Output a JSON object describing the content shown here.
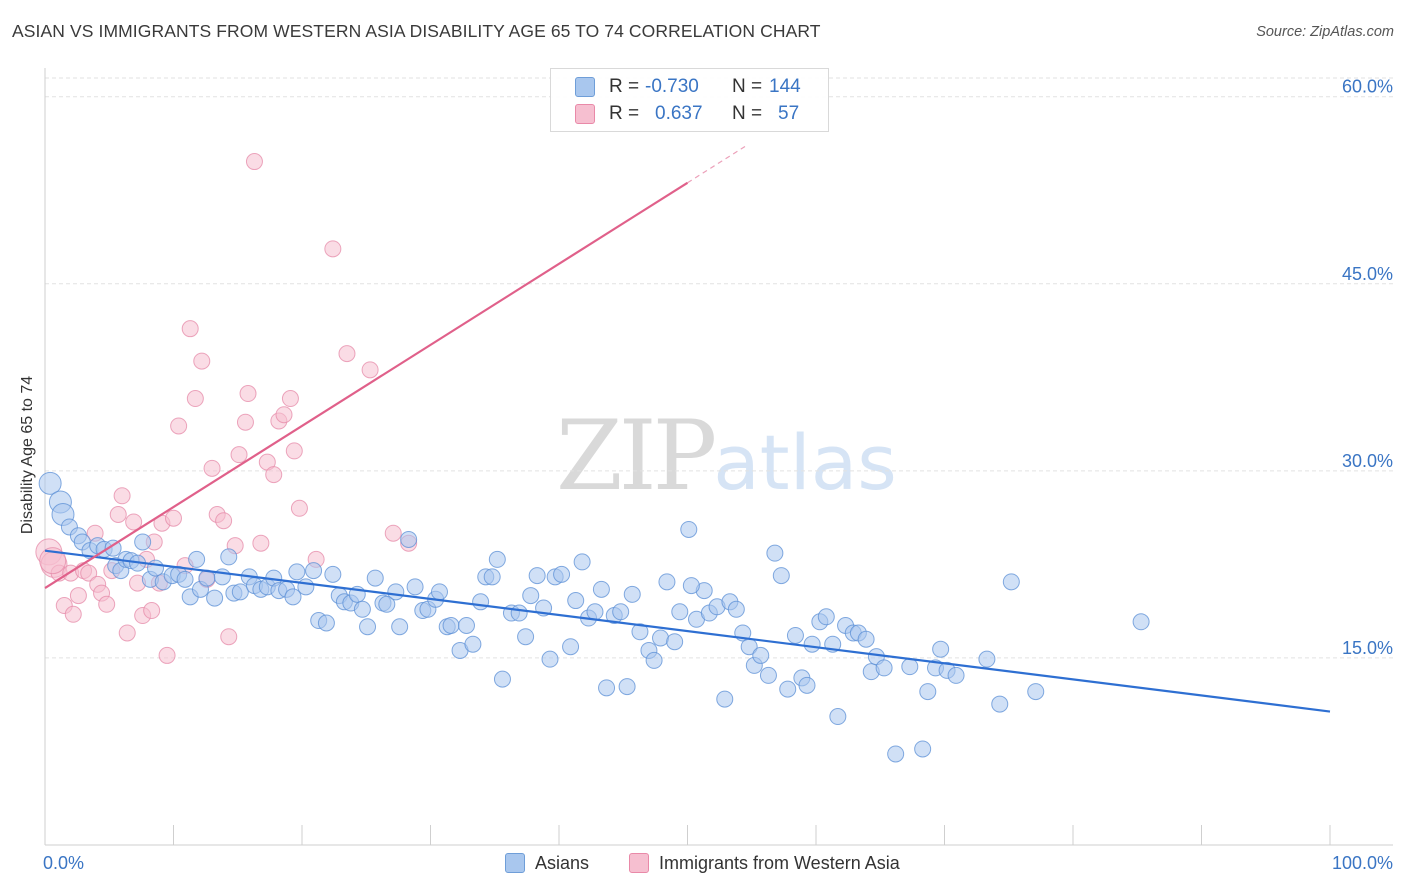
{
  "title": "ASIAN VS IMMIGRANTS FROM WESTERN ASIA DISABILITY AGE 65 TO 74 CORRELATION CHART",
  "source": "Source: ZipAtlas.com",
  "watermark": {
    "zip": "ZIP",
    "atlas": "atlas"
  },
  "legend": {
    "rows": [
      {
        "r_label": "R =",
        "r_value": "-0.730",
        "n_label": "N =",
        "n_value": "144",
        "color": "#a9c7ee",
        "border": "#6f9ed8"
      },
      {
        "r_label": "R =",
        "r_value": "0.637",
        "n_label": "N =",
        "n_value": "57",
        "color": "#f6bfd0",
        "border": "#e989a8"
      }
    ]
  },
  "bottom_legend": [
    {
      "label": "Asians",
      "color": "#a9c7ee",
      "border": "#6f9ed8"
    },
    {
      "label": "Immigrants from Western Asia",
      "color": "#f6bfd0",
      "border": "#e989a8"
    }
  ],
  "colors": {
    "asian_fill": "#a9c7ee",
    "asian_stroke": "#5b8fd6",
    "asian_line": "#2e6fd2",
    "wa_fill": "#f6bfd0",
    "wa_stroke": "#e58aa8",
    "wa_line": "#e0608a",
    "tick_text": "#3a75c4",
    "grid": "#e2e2e2"
  },
  "chart_data": {
    "type": "scatter",
    "title": "ASIAN VS IMMIGRANTS FROM WESTERN ASIA DISABILITY AGE 65 TO 74 CORRELATION CHART",
    "xlabel": "",
    "ylabel": "Disability Age 65 to 74",
    "xlim": [
      0,
      100
    ],
    "ylim": [
      0,
      61.5
    ],
    "x_tick_labels": [
      "0.0%",
      "100.0%"
    ],
    "y_ticks": [
      15,
      30,
      45,
      60
    ],
    "y_tick_labels": [
      "15.0%",
      "30.0%",
      "45.0%",
      "60.0%"
    ],
    "grid": true,
    "legend_position": "top-center",
    "series": [
      {
        "name": "Asians",
        "trend": {
          "x": [
            0,
            100
          ],
          "y": [
            23.6,
            10.7
          ]
        },
        "points": [
          [
            0.4,
            29
          ],
          [
            1.2,
            27.5
          ],
          [
            1.4,
            26.5
          ],
          [
            1.9,
            25.5
          ],
          [
            2.6,
            24.8
          ],
          [
            2.9,
            24.3
          ],
          [
            3.5,
            23.6
          ],
          [
            4.1,
            24
          ],
          [
            4.6,
            23.7
          ],
          [
            5.3,
            23.8
          ],
          [
            5.5,
            22.4
          ],
          [
            5.9,
            22
          ],
          [
            6.3,
            22.9
          ],
          [
            6.7,
            22.8
          ],
          [
            7.2,
            22.6
          ],
          [
            7.6,
            24.3
          ],
          [
            8.2,
            21.3
          ],
          [
            8.6,
            22.2
          ],
          [
            9.2,
            21.1
          ],
          [
            9.9,
            21.6
          ],
          [
            10.4,
            21.7
          ],
          [
            10.9,
            21.3
          ],
          [
            11.3,
            19.9
          ],
          [
            11.8,
            22.9
          ],
          [
            12.1,
            20.5
          ],
          [
            12.6,
            21.4
          ],
          [
            13.2,
            19.8
          ],
          [
            13.8,
            21.5
          ],
          [
            14.3,
            23.1
          ],
          [
            14.7,
            20.2
          ],
          [
            15.2,
            20.3
          ],
          [
            15.9,
            21.5
          ],
          [
            16.3,
            20.8
          ],
          [
            16.8,
            20.5
          ],
          [
            17.3,
            20.7
          ],
          [
            17.8,
            21.4
          ],
          [
            18.2,
            20.4
          ],
          [
            18.8,
            20.5
          ],
          [
            19.3,
            19.9
          ],
          [
            19.6,
            21.9
          ],
          [
            20.3,
            20.7
          ],
          [
            20.9,
            22
          ],
          [
            21.3,
            18
          ],
          [
            21.9,
            17.8
          ],
          [
            22.4,
            21.7
          ],
          [
            22.9,
            20
          ],
          [
            23.3,
            19.5
          ],
          [
            23.8,
            19.4
          ],
          [
            24.3,
            20.1
          ],
          [
            24.7,
            18.9
          ],
          [
            25.1,
            17.5
          ],
          [
            25.7,
            21.4
          ],
          [
            26.3,
            19.4
          ],
          [
            26.6,
            19.3
          ],
          [
            27.3,
            20.3
          ],
          [
            27.6,
            17.5
          ],
          [
            28.3,
            24.5
          ],
          [
            28.8,
            20.7
          ],
          [
            29.4,
            18.8
          ],
          [
            29.8,
            18.9
          ],
          [
            30.4,
            19.7
          ],
          [
            30.7,
            20.3
          ],
          [
            31.3,
            17.5
          ],
          [
            31.6,
            17.6
          ],
          [
            32.3,
            15.6
          ],
          [
            32.8,
            17.6
          ],
          [
            33.3,
            16.1
          ],
          [
            33.9,
            19.5
          ],
          [
            34.3,
            21.5
          ],
          [
            34.8,
            21.5
          ],
          [
            35.2,
            22.9
          ],
          [
            35.6,
            13.3
          ],
          [
            36.3,
            18.6
          ],
          [
            36.9,
            18.6
          ],
          [
            37.4,
            16.7
          ],
          [
            37.8,
            20
          ],
          [
            38.3,
            21.6
          ],
          [
            38.8,
            19
          ],
          [
            39.3,
            14.9
          ],
          [
            39.7,
            21.5
          ],
          [
            40.2,
            21.7
          ],
          [
            40.9,
            15.9
          ],
          [
            41.3,
            19.6
          ],
          [
            41.8,
            22.7
          ],
          [
            42.3,
            18.2
          ],
          [
            42.8,
            18.7
          ],
          [
            43.3,
            20.5
          ],
          [
            43.7,
            12.6
          ],
          [
            44.3,
            18.4
          ],
          [
            44.8,
            18.7
          ],
          [
            45.3,
            12.7
          ],
          [
            45.7,
            20.1
          ],
          [
            46.3,
            17.1
          ],
          [
            47,
            15.6
          ],
          [
            47.4,
            14.8
          ],
          [
            47.9,
            16.6
          ],
          [
            48.4,
            21.1
          ],
          [
            49,
            16.3
          ],
          [
            49.4,
            18.7
          ],
          [
            50.1,
            25.3
          ],
          [
            50.7,
            18.1
          ],
          [
            51.3,
            20.4
          ],
          [
            51.7,
            18.6
          ],
          [
            52.3,
            19.1
          ],
          [
            52.9,
            11.7
          ],
          [
            53.3,
            19.5
          ],
          [
            53.8,
            18.9
          ],
          [
            54.3,
            17
          ],
          [
            54.8,
            15.9
          ],
          [
            55.2,
            14.4
          ],
          [
            55.7,
            15.2
          ],
          [
            56.3,
            13.6
          ],
          [
            56.8,
            23.4
          ],
          [
            57.3,
            21.6
          ],
          [
            57.8,
            12.5
          ],
          [
            58.4,
            16.8
          ],
          [
            58.9,
            13.4
          ],
          [
            59.3,
            12.8
          ],
          [
            59.7,
            16.1
          ],
          [
            60.3,
            17.9
          ],
          [
            60.8,
            18.3
          ],
          [
            61.3,
            16.1
          ],
          [
            61.7,
            10.3
          ],
          [
            62.3,
            17.6
          ],
          [
            62.9,
            17
          ],
          [
            63.3,
            17
          ],
          [
            63.9,
            16.5
          ],
          [
            64.3,
            13.9
          ],
          [
            64.7,
            15.1
          ],
          [
            65.3,
            14.2
          ],
          [
            66.2,
            7.3
          ],
          [
            67.3,
            14.3
          ],
          [
            68.3,
            7.7
          ],
          [
            68.7,
            12.3
          ],
          [
            69.3,
            14.2
          ],
          [
            69.7,
            15.7
          ],
          [
            70.2,
            14
          ],
          [
            70.9,
            13.6
          ],
          [
            73.3,
            14.9
          ],
          [
            74.3,
            11.3
          ],
          [
            75.2,
            21.1
          ],
          [
            77.1,
            12.3
          ],
          [
            85.3,
            17.9
          ],
          [
            50.3,
            20.8
          ]
        ]
      },
      {
        "name": "Immigrants from Western Asia",
        "trend": {
          "x": [
            0,
            50
          ],
          "y": [
            20.6,
            53.1
          ]
        },
        "points": [
          [
            0.3,
            23.5
          ],
          [
            0.7,
            22.5
          ],
          [
            1.1,
            21.8
          ],
          [
            1.5,
            19.2
          ],
          [
            2,
            21.8
          ],
          [
            2.2,
            18.5
          ],
          [
            2.6,
            20
          ],
          [
            3,
            22
          ],
          [
            3.4,
            21.8
          ],
          [
            3.9,
            25
          ],
          [
            4.1,
            20.9
          ],
          [
            4.4,
            20.2
          ],
          [
            4.8,
            19.3
          ],
          [
            5.2,
            22
          ],
          [
            5.7,
            26.5
          ],
          [
            6,
            28
          ],
          [
            6.4,
            17
          ],
          [
            6.9,
            25.9
          ],
          [
            7.2,
            21
          ],
          [
            7.6,
            18.4
          ],
          [
            7.9,
            22.9
          ],
          [
            8.3,
            18.8
          ],
          [
            8.5,
            24.3
          ],
          [
            8.9,
            21
          ],
          [
            9.1,
            25.8
          ],
          [
            9.5,
            15.2
          ],
          [
            10,
            26.2
          ],
          [
            10.4,
            33.6
          ],
          [
            10.9,
            22.4
          ],
          [
            11.3,
            41.4
          ],
          [
            11.7,
            35.8
          ],
          [
            12.2,
            38.8
          ],
          [
            12.6,
            21.3
          ],
          [
            13,
            30.2
          ],
          [
            13.4,
            26.5
          ],
          [
            13.9,
            26
          ],
          [
            14.3,
            16.7
          ],
          [
            14.8,
            24
          ],
          [
            15.1,
            31.3
          ],
          [
            15.6,
            33.9
          ],
          [
            15.8,
            36.2
          ],
          [
            16.3,
            54.8
          ],
          [
            16.8,
            24.2
          ],
          [
            17.3,
            30.7
          ],
          [
            17.8,
            29.7
          ],
          [
            18.2,
            34
          ],
          [
            18.6,
            34.5
          ],
          [
            19.1,
            35.8
          ],
          [
            19.4,
            31.6
          ],
          [
            19.8,
            27
          ],
          [
            21.1,
            22.9
          ],
          [
            22.4,
            47.8
          ],
          [
            23.5,
            39.4
          ],
          [
            25.3,
            38.1
          ],
          [
            27.1,
            25
          ],
          [
            28.3,
            24.2
          ],
          [
            0.6,
            22.8
          ]
        ]
      }
    ]
  }
}
